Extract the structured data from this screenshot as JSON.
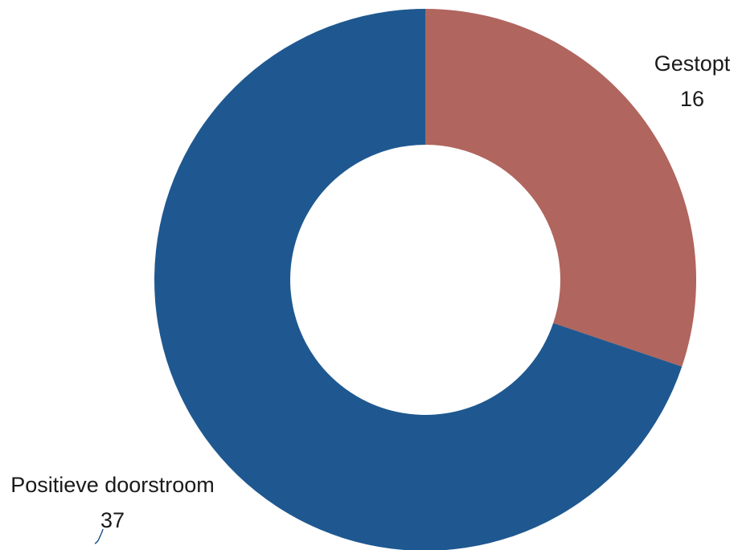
{
  "chart_data": {
    "type": "pie",
    "donut": true,
    "title": "",
    "slices": [
      {
        "label": "Gestopt",
        "value": 16,
        "color": "#b0655e"
      },
      {
        "label": "Positieve doorstroom",
        "value": 37,
        "color": "#1f5890"
      }
    ],
    "legend": "none",
    "data_labels": "outside with leader line"
  }
}
